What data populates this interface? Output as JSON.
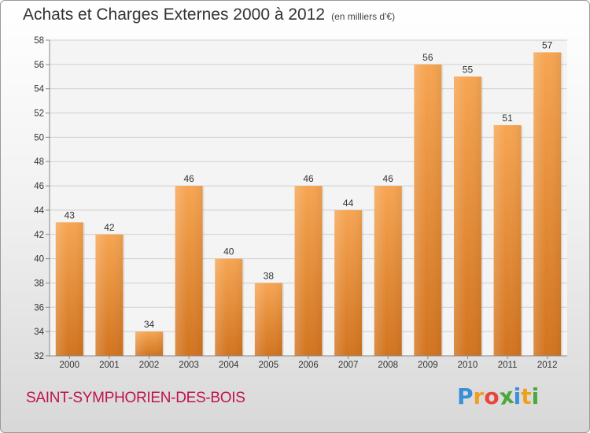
{
  "chart_data": {
    "type": "bar",
    "title": "Achats et Charges Externes 2000 à 2012",
    "subtitle": "(en milliers d'€)",
    "xlabel": "",
    "ylabel": "",
    "categories": [
      "2000",
      "2001",
      "2002",
      "2003",
      "2004",
      "2005",
      "2006",
      "2007",
      "2008",
      "2009",
      "2010",
      "2011",
      "2012"
    ],
    "values": [
      43,
      42,
      34,
      46,
      40,
      38,
      46,
      44,
      46,
      56,
      55,
      51,
      57
    ],
    "ylim": [
      32,
      58
    ],
    "yticks": [
      32,
      34,
      36,
      38,
      40,
      42,
      44,
      46,
      48,
      50,
      52,
      54,
      56,
      58
    ],
    "grid": true,
    "bar_color": "#f0913a"
  },
  "footer": {
    "commune": "SAINT-SYMPHORIEN-DES-BOIS",
    "logo_letters": [
      {
        "ch": "P",
        "color": "#3a8fd6"
      },
      {
        "ch": "r",
        "color": "#f0a020"
      },
      {
        "ch": "o",
        "color": "#e8463a"
      },
      {
        "ch": "x",
        "color": "#4aa83c"
      },
      {
        "ch": "i",
        "color": "#3a8fd6"
      },
      {
        "ch": "t",
        "color": "#f0a020"
      },
      {
        "ch": "i",
        "color": "#4aa83c"
      }
    ]
  }
}
